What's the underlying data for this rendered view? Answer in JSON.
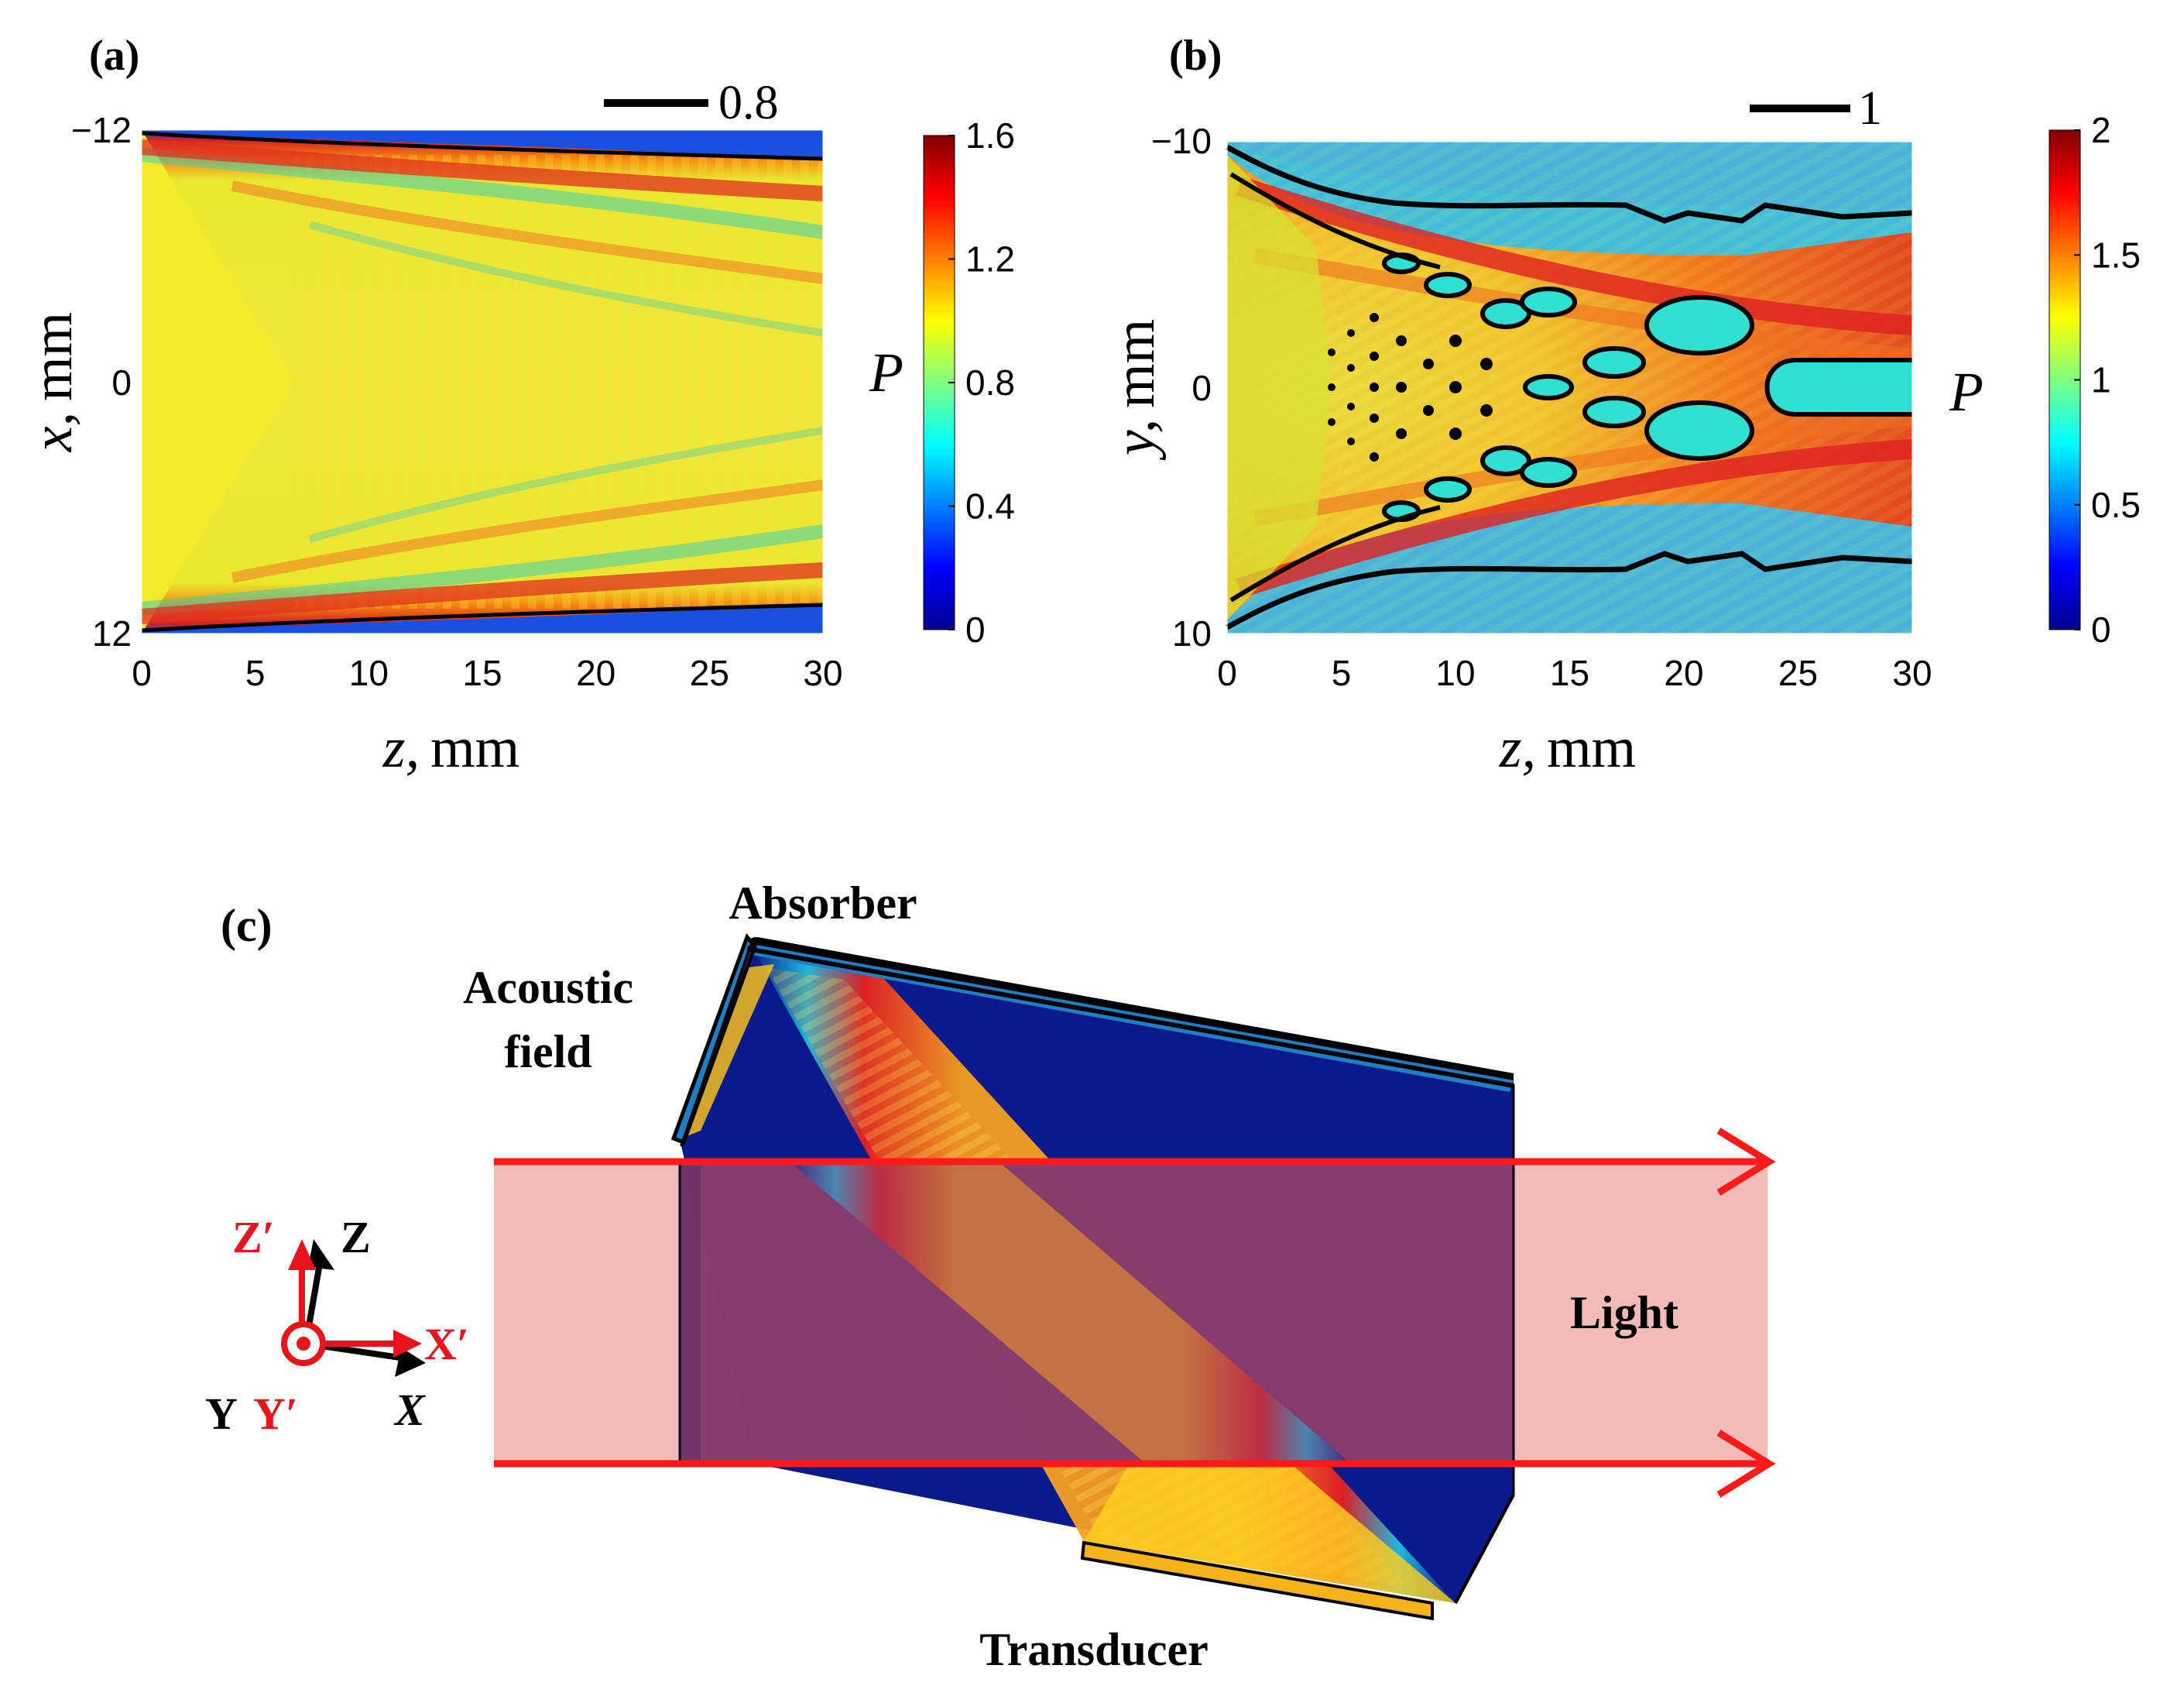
{
  "figure": {
    "panel_a": {
      "label": "(a)",
      "scale_label": "0.8",
      "xlabel_var": "z,",
      "xlabel_unit": "mm",
      "ylabel_var": "x,",
      "ylabel_unit": "mm",
      "colorbar_label": "P",
      "colorbar_ticks": [
        "0",
        "0.4",
        "0.8",
        "1.2",
        "1.6"
      ]
    },
    "panel_b": {
      "label": "(b)",
      "scale_label": "1",
      "xlabel_var": "z,",
      "xlabel_unit": "mm",
      "ylabel_var": "y,",
      "ylabel_unit": "mm",
      "colorbar_label": "P",
      "colorbar_ticks": [
        "0",
        "0.5",
        "1",
        "1.5",
        "2"
      ]
    },
    "panel_c": {
      "label": "(c)",
      "absorber": "Absorber",
      "acoustic_field_line1": "Acoustic",
      "acoustic_field_line2": "field",
      "light": "Light",
      "transducer": "Transducer",
      "axis_z_prime": "Z′",
      "axis_z": "Z",
      "axis_x_prime": "X′",
      "axis_x": "X",
      "axis_y": "Y",
      "axis_y_prime": "Y′",
      "colors": {
        "prime_axes": "#e8141c",
        "beam_arrow": "#ff1a1a",
        "light_fill": "#f2b4b0",
        "crystal": "#0a1a8a",
        "overlap": "#7d3268",
        "absorber": "#1e7fc4",
        "transducer": "#f5b31a"
      }
    }
  },
  "chart_data": [
    {
      "type": "heatmap",
      "panel": "(a)",
      "xlabel": "z, mm",
      "ylabel": "x, mm",
      "colorbar_label": "P",
      "xlim": [
        0,
        30
      ],
      "ylim": [
        -12,
        12
      ],
      "x_ticks": [
        0,
        5,
        10,
        15,
        20,
        25,
        30
      ],
      "y_ticks": [
        -12,
        0,
        12
      ],
      "colorbar_range": [
        0,
        1.6
      ],
      "colorbar_ticks": [
        0,
        0.4,
        0.8,
        1.2,
        1.6
      ],
      "contour_level": 0.8,
      "colormap": "jet"
    },
    {
      "type": "heatmap",
      "panel": "(b)",
      "xlabel": "z, mm",
      "ylabel": "y, mm",
      "colorbar_label": "P",
      "xlim": [
        0,
        30
      ],
      "ylim": [
        -10,
        10
      ],
      "x_ticks": [
        0,
        5,
        10,
        15,
        20,
        25,
        30
      ],
      "y_ticks": [
        -10,
        0,
        10
      ],
      "colorbar_range": [
        0,
        2
      ],
      "colorbar_ticks": [
        0,
        0.5,
        1,
        1.5,
        2
      ],
      "contour_level": 1,
      "colormap": "jet"
    }
  ]
}
